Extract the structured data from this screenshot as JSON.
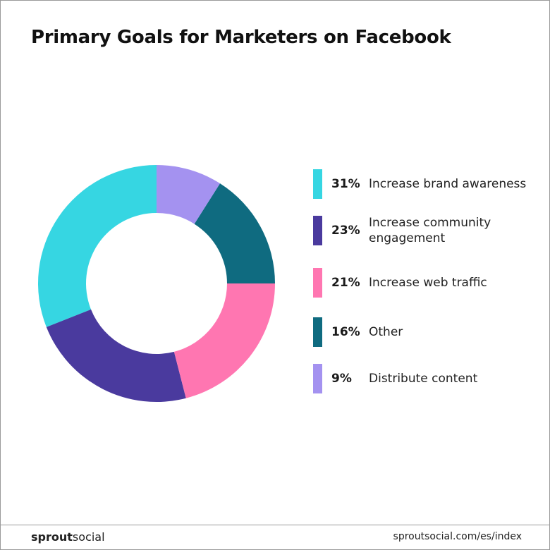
{
  "chart_data": {
    "type": "donut",
    "title": "Primary Goals for Marketers on Facebook",
    "categories": [
      "Increase brand awareness",
      "Increase community engagement",
      "Increase web traffic",
      "Other",
      "Distribute content"
    ],
    "values": [
      31,
      23,
      21,
      16,
      9
    ],
    "value_labels": [
      "31%",
      "23%",
      "21%",
      "16%",
      "9%"
    ],
    "colors": [
      "#36d6e2",
      "#4a3a9e",
      "#ff76b1",
      "#0f6b80",
      "#a492f0"
    ]
  },
  "footer": {
    "brand_bold": "sprout",
    "brand_light": "social",
    "url": "sproutsocial.com/es/index"
  }
}
